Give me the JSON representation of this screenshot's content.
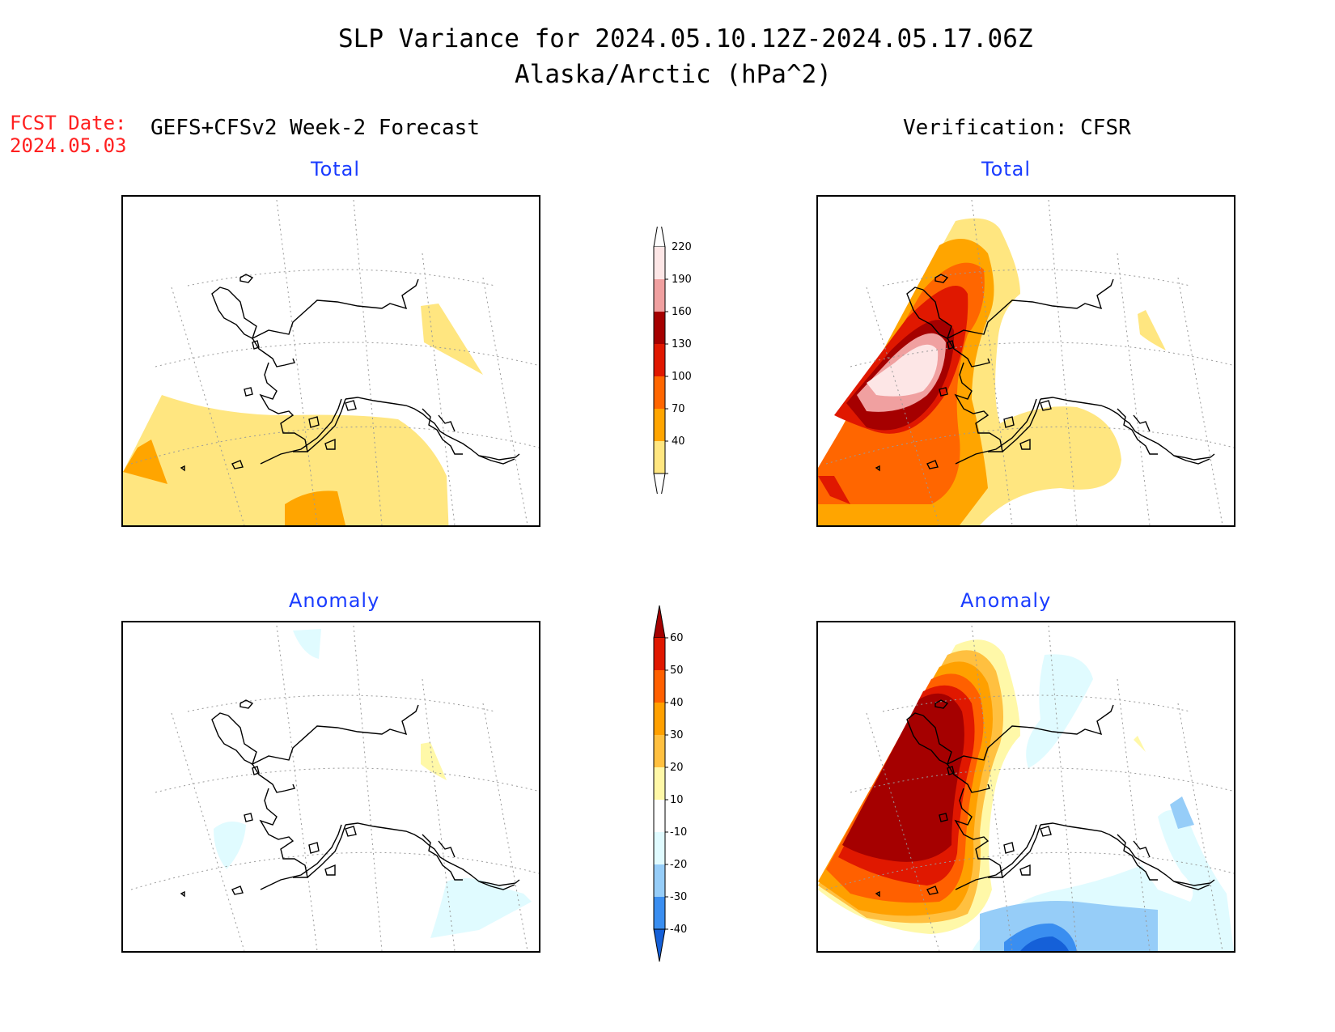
{
  "title": {
    "line1": "SLP Variance for 2024.05.10.12Z-2024.05.17.06Z",
    "line2": "Alaska/Arctic (hPa^2)"
  },
  "forecast": {
    "date_label": "FCST Date:",
    "date_value": "2024.05.03",
    "header": "GEFS+CFSv2 Week-2 Forecast"
  },
  "verification": {
    "header": "Verification: CFSR"
  },
  "panels": {
    "forecast_total": {
      "label": "Total"
    },
    "verification_total": {
      "label": "Total"
    },
    "forecast_anomaly": {
      "label": "Anomaly"
    },
    "verification_anomaly": {
      "label": "Anomaly"
    }
  },
  "colorbar_total": {
    "levels": [
      "40",
      "70",
      "100",
      "130",
      "160",
      "190",
      "220"
    ],
    "colors": [
      "#ffe680",
      "#ffa500",
      "#ff6600",
      "#e01800",
      "#a50000",
      "#f0a0a0",
      "#fde6e6"
    ]
  },
  "colorbar_anomaly": {
    "levels": [
      "-40",
      "-30",
      "-20",
      "-10",
      "10",
      "20",
      "30",
      "40",
      "50",
      "60"
    ],
    "colors": [
      "#1560d8",
      "#3a8ef0",
      "#96cdf8",
      "#e0fbff",
      "#ffffff",
      "#fff8a8",
      "#ffc040",
      "#ffa000",
      "#ff6000",
      "#e01800",
      "#a50000"
    ]
  }
}
